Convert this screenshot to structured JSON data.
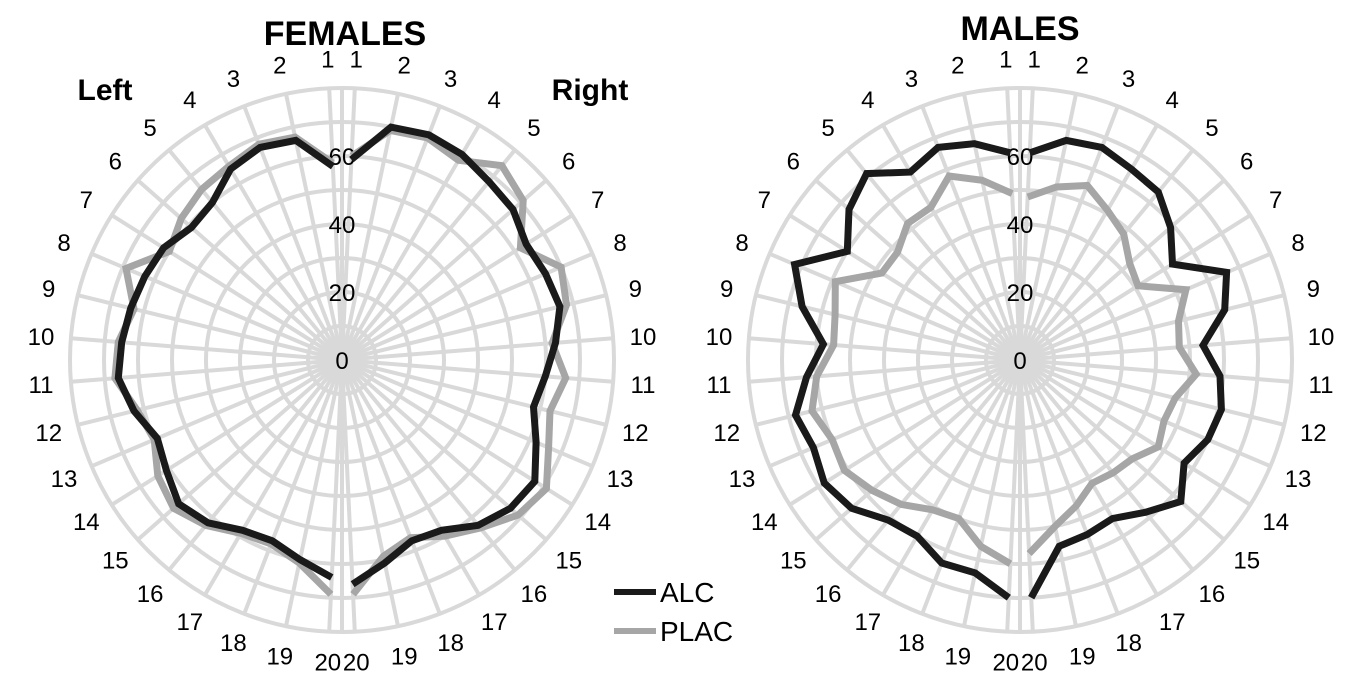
{
  "chart_data": [
    {
      "type": "radar",
      "title": "FEMALES",
      "side_labels": {
        "left": "Left",
        "right": "Right"
      },
      "spokes": [
        "1",
        "2",
        "3",
        "4",
        "5",
        "6",
        "7",
        "8",
        "9",
        "10",
        "11",
        "12",
        "13",
        "14",
        "15",
        "16",
        "17",
        "18",
        "19",
        "20"
      ],
      "r_ticks": [
        "0",
        "20",
        "40",
        "60"
      ],
      "rlim": [
        0,
        80
      ],
      "grid": true,
      "series": [
        {
          "name": "ALC",
          "color": "#1a1a1a",
          "left": [
            57,
            66,
            67,
            65,
            60,
            59,
            62,
            63,
            64,
            65,
            66,
            63,
            59,
            61,
            64,
            62,
            58,
            57,
            60,
            64
          ],
          "right": [
            59,
            70,
            71,
            70,
            68,
            67,
            64,
            65,
            66,
            63,
            60,
            58,
            62,
            67,
            66,
            63,
            58,
            57,
            61,
            66
          ]
        },
        {
          "name": "PLAC",
          "color": "#a6a6a6",
          "left": [
            58,
            67,
            68,
            66,
            65,
            63,
            60,
            69,
            63,
            66,
            67,
            62,
            60,
            64,
            66,
            63,
            59,
            58,
            61,
            69
          ],
          "right": [
            60,
            69,
            70,
            68,
            74,
            71,
            62,
            70,
            68,
            62,
            66,
            63,
            66,
            71,
            69,
            64,
            60,
            56,
            59,
            69
          ]
        }
      ]
    },
    {
      "type": "radar",
      "title": "MALES",
      "spokes": [
        "1",
        "2",
        "3",
        "4",
        "5",
        "6",
        "7",
        "8",
        "9",
        "10",
        "11",
        "12",
        "13",
        "14",
        "15",
        "16",
        "17",
        "18",
        "19",
        "20"
      ],
      "r_ticks": [
        "0",
        "20",
        "40",
        "60"
      ],
      "rlim": [
        0,
        80
      ],
      "grid": true,
      "series": [
        {
          "name": "ALC",
          "color": "#1a1a1a",
          "left": [
            61,
            65,
            67,
            64,
            71,
            67,
            60,
            72,
            66,
            58,
            63,
            68,
            66,
            68,
            66,
            61,
            60,
            64,
            64,
            70
          ],
          "right": [
            61,
            66,
            67,
            65,
            64,
            59,
            53,
            66,
            62,
            54,
            59,
            61,
            60,
            57,
            63,
            58,
            54,
            55,
            56,
            70
          ]
        },
        {
          "name": "PLAC",
          "color": "#a6a6a6",
          "left": [
            49,
            54,
            58,
            52,
            52,
            48,
            48,
            59,
            56,
            55,
            60,
            63,
            60,
            61,
            58,
            55,
            51,
            50,
            56,
            60
          ],
          "right": [
            48,
            52,
            55,
            51,
            48,
            43,
            41,
            53,
            48,
            47,
            52,
            47,
            46,
            48,
            44,
            43,
            42,
            46,
            50,
            57
          ]
        }
      ]
    }
  ],
  "legend": [
    {
      "label": "ALC",
      "color": "#1a1a1a"
    },
    {
      "label": "PLAC",
      "color": "#a6a6a6"
    }
  ]
}
